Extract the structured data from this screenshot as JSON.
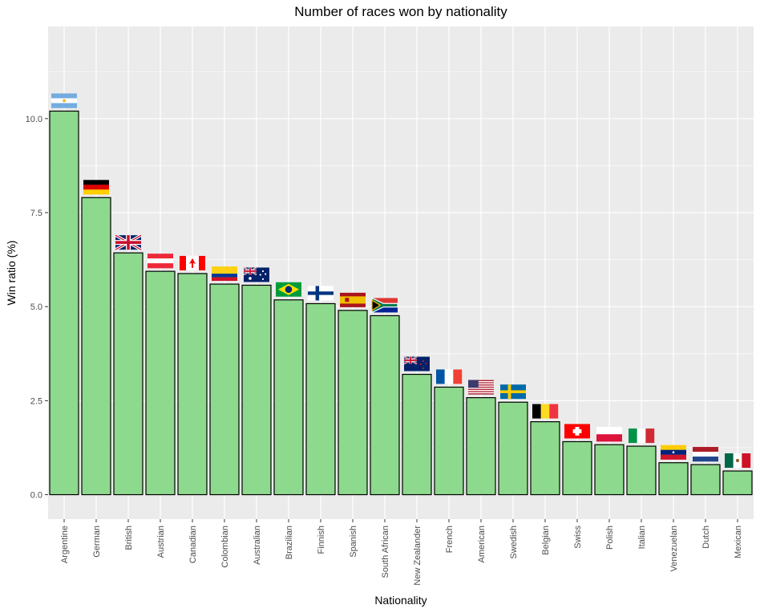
{
  "chart_data": {
    "type": "bar",
    "title": "Number of races won by nationality",
    "xlabel": "Nationality",
    "ylabel": "Win ratio (%)",
    "ylim": [
      -0.65,
      12.45
    ],
    "yticks": [
      0.0,
      2.5,
      5.0,
      7.5,
      10.0
    ],
    "ytick_labels": [
      "0.0",
      "2.5",
      "5.0",
      "7.5",
      "10.0"
    ],
    "grid": true,
    "bar_color": "#8dd98d",
    "bar_edge_color": "#000000",
    "panel_background": "#ebebeb",
    "grid_color": "#ffffff",
    "categories": [
      "Argentine",
      "German",
      "British",
      "Austrian",
      "Canadian",
      "Colombian",
      "Australian",
      "Brazilian",
      "Finnish",
      "Spanish",
      "South African",
      "New Zealander",
      "French",
      "American",
      "Swedish",
      "Belgian",
      "Swiss",
      "Polish",
      "Italian",
      "Venezuelan",
      "Dutch",
      "Mexican"
    ],
    "values": [
      10.2,
      7.9,
      6.43,
      5.94,
      5.88,
      5.6,
      5.57,
      5.18,
      5.08,
      4.9,
      4.76,
      3.2,
      2.86,
      2.58,
      2.46,
      1.94,
      1.41,
      1.33,
      1.29,
      0.85,
      0.8,
      0.63
    ],
    "flags": [
      "argentina-flag",
      "germany-flag",
      "uk-flag",
      "austria-flag",
      "canada-flag",
      "colombia-flag",
      "australia-flag",
      "brazil-flag",
      "finland-flag",
      "spain-flag",
      "south-africa-flag",
      "new-zealand-flag",
      "france-flag",
      "usa-flag",
      "sweden-flag",
      "belgium-flag",
      "switzerland-flag",
      "poland-flag",
      "italy-flag",
      "venezuela-flag",
      "netherlands-flag",
      "mexico-flag"
    ]
  }
}
